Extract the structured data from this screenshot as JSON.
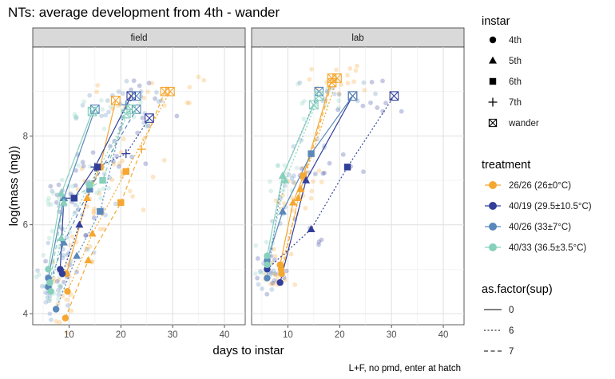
{
  "chart_data": {
    "type": "scatter",
    "title": "NTs: average development from 4th - wander",
    "xlabel": "days to instar",
    "ylabel": "log(mass (mg))",
    "caption": "L+F, no pmd, enter at hatch",
    "xlim": [
      3,
      44
    ],
    "ylim": [
      3.75,
      10.0
    ],
    "xticks": [
      10,
      20,
      30,
      40
    ],
    "yticks": [
      4,
      6,
      8
    ],
    "panels": [
      "field",
      "lab"
    ],
    "instars": [
      "4th",
      "5th",
      "6th",
      "7th",
      "wander"
    ],
    "treatments": [
      {
        "label": "26/26 (26±0°C)",
        "color": "#F5A731"
      },
      {
        "label": "40/19 (29.5±10.5°C)",
        "color": "#323F9A"
      },
      {
        "label": "40/26 (33±7°C)",
        "color": "#5A88BB"
      },
      {
        "label": "40/33 (36.5±3.5°C)",
        "color": "#86D0BC"
      }
    ],
    "sups": [
      "0",
      "6",
      "7"
    ],
    "legend": {
      "instar_title": "instar",
      "treatment_title": "treatment",
      "sup_title": "as.factor(sup)"
    },
    "series": [
      {
        "panel": "field",
        "treatment": 0,
        "sup": "0",
        "points": [
          [
            9.5,
            4.9
          ],
          [
            13.5,
            6.6
          ],
          [
            16.0,
            7.3
          ],
          [
            19.0,
            8.8
          ]
        ]
      },
      {
        "panel": "field",
        "treatment": 0,
        "sup": "6",
        "points": [
          [
            9.7,
            4.5
          ],
          [
            14.5,
            5.8
          ],
          [
            21.0,
            7.2
          ],
          [
            29.5,
            9.0
          ]
        ]
      },
      {
        "panel": "field",
        "treatment": 0,
        "sup": "7",
        "points": [
          [
            9.3,
            3.9
          ],
          [
            13.7,
            5.2
          ],
          [
            20.0,
            6.5
          ],
          [
            24.0,
            7.7
          ],
          [
            28.5,
            9.0
          ]
        ]
      },
      {
        "panel": "field",
        "treatment": 1,
        "sup": "0",
        "points": [
          [
            8.3,
            5.0
          ],
          [
            9.0,
            6.6
          ],
          [
            11.0,
            6.6
          ],
          [
            15.0,
            7.3
          ],
          [
            22.0,
            8.9
          ]
        ]
      },
      {
        "panel": "field",
        "treatment": 1,
        "sup": "6",
        "points": [
          [
            8.7,
            4.9
          ],
          [
            12.0,
            6.0
          ],
          [
            15.5,
            7.3
          ],
          [
            21.0,
            7.6
          ],
          [
            25.5,
            8.4
          ]
        ]
      },
      {
        "panel": "field",
        "treatment": 2,
        "sup": "0",
        "points": [
          [
            6.0,
            4.8
          ],
          [
            9.0,
            6.6
          ],
          [
            15.0,
            8.6
          ]
        ]
      },
      {
        "panel": "field",
        "treatment": 2,
        "sup": "6",
        "points": [
          [
            7.5,
            4.1
          ],
          [
            11.5,
            5.3
          ],
          [
            16.0,
            6.3
          ],
          [
            21.0,
            8.7
          ],
          [
            23.0,
            8.9
          ]
        ]
      },
      {
        "panel": "field",
        "treatment": 2,
        "sup": "7",
        "points": [
          [
            6.0,
            4.6
          ],
          [
            9.0,
            5.6
          ],
          [
            14.0,
            6.8
          ],
          [
            23.0,
            8.6
          ]
        ]
      },
      {
        "panel": "field",
        "treatment": 3,
        "sup": "0",
        "points": [
          [
            6.0,
            5.0
          ],
          [
            8.5,
            6.7
          ],
          [
            14.5,
            8.55
          ]
        ]
      },
      {
        "panel": "field",
        "treatment": 3,
        "sup": "6",
        "points": [
          [
            6.5,
            4.5
          ],
          [
            8.5,
            5.7
          ],
          [
            14.0,
            6.9
          ],
          [
            22.0,
            8.6
          ]
        ]
      },
      {
        "panel": "field",
        "treatment": 3,
        "sup": "7",
        "points": [
          [
            6.3,
            4.7
          ],
          [
            9.0,
            6.5
          ],
          [
            16.5,
            7.0
          ],
          [
            21.0,
            8.5
          ]
        ]
      },
      {
        "panel": "lab",
        "treatment": 0,
        "sup": "0",
        "points": [
          [
            8.5,
            5.1
          ],
          [
            11.0,
            6.5
          ],
          [
            13.0,
            7.1
          ],
          [
            18.5,
            9.3
          ]
        ]
      },
      {
        "panel": "lab",
        "treatment": 0,
        "sup": "6",
        "points": [
          [
            8.7,
            5.0
          ],
          [
            12.5,
            6.8
          ],
          [
            19.5,
            9.3
          ]
        ]
      },
      {
        "panel": "lab",
        "treatment": 0,
        "sup": "7",
        "points": [
          [
            8.8,
            4.9
          ],
          [
            12.0,
            6.6
          ],
          [
            18.5,
            9.2
          ]
        ]
      },
      {
        "panel": "lab",
        "treatment": 1,
        "sup": "0",
        "points": [
          [
            8.5,
            4.7
          ],
          [
            13.5,
            7.0
          ],
          [
            22.5,
            8.9
          ]
        ]
      },
      {
        "panel": "lab",
        "treatment": 1,
        "sup": "6",
        "points": [
          [
            6.0,
            5.0
          ],
          [
            14.5,
            5.9
          ],
          [
            21.5,
            7.3
          ],
          [
            30.5,
            8.9
          ]
        ]
      },
      {
        "panel": "lab",
        "treatment": 2,
        "sup": "0",
        "points": [
          [
            6.0,
            5.2
          ],
          [
            9.0,
            6.3
          ],
          [
            14.5,
            7.6
          ],
          [
            22.5,
            8.9
          ]
        ]
      },
      {
        "panel": "lab",
        "treatment": 2,
        "sup": "6",
        "points": [
          [
            6.0,
            4.8
          ],
          [
            9.0,
            7.1
          ],
          [
            16.0,
            9.0
          ]
        ]
      },
      {
        "panel": "lab",
        "treatment": 3,
        "sup": "0",
        "points": [
          [
            6.0,
            5.3
          ],
          [
            9.0,
            7.1
          ],
          [
            15.0,
            8.7
          ]
        ]
      },
      {
        "panel": "lab",
        "treatment": 3,
        "sup": "6",
        "points": [
          [
            6.0,
            5.1
          ],
          [
            9.5,
            7.0
          ],
          [
            16.0,
            8.9
          ]
        ]
      }
    ]
  }
}
